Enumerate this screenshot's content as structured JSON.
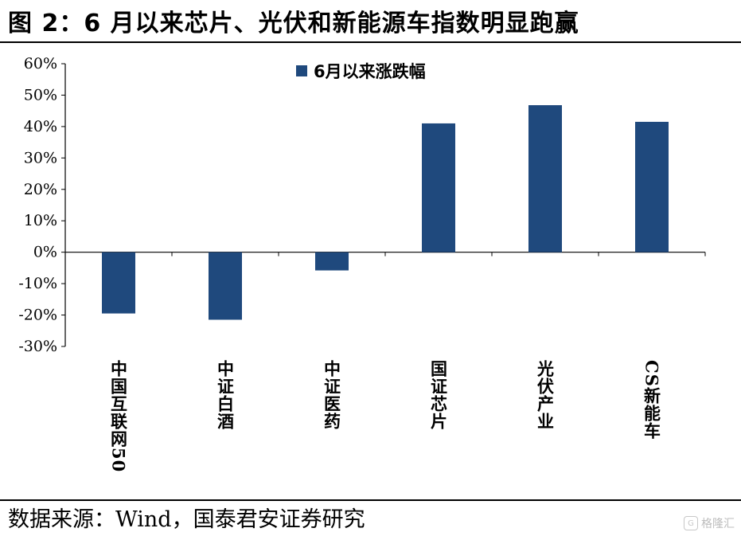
{
  "figure": {
    "title": "图 2：6 月以来芯片、光伏和新能源车指数明显跑赢",
    "source": "数据来源：Wind，国泰君安证券研究",
    "watermark": "格隆汇"
  },
  "chart_data": {
    "type": "bar",
    "categories": [
      "中国互联网50",
      "中证白酒",
      "中证医药",
      "国证芯片",
      "光伏产业",
      "CS新能车"
    ],
    "series": [
      {
        "name": "6月以来涨跌幅",
        "values": [
          -19.5,
          -21.5,
          -5.8,
          41.0,
          46.8,
          41.5
        ],
        "color": "#1f497d"
      }
    ],
    "ylim": [
      -30,
      60
    ],
    "yticks": [
      "60%",
      "50%",
      "40%",
      "30%",
      "20%",
      "10%",
      "0%",
      "-10%",
      "-20%",
      "-30%"
    ],
    "ytick_values": [
      60,
      50,
      40,
      30,
      20,
      10,
      0,
      -10,
      -20,
      -30
    ],
    "grid": false,
    "legend_position": "top-center"
  }
}
